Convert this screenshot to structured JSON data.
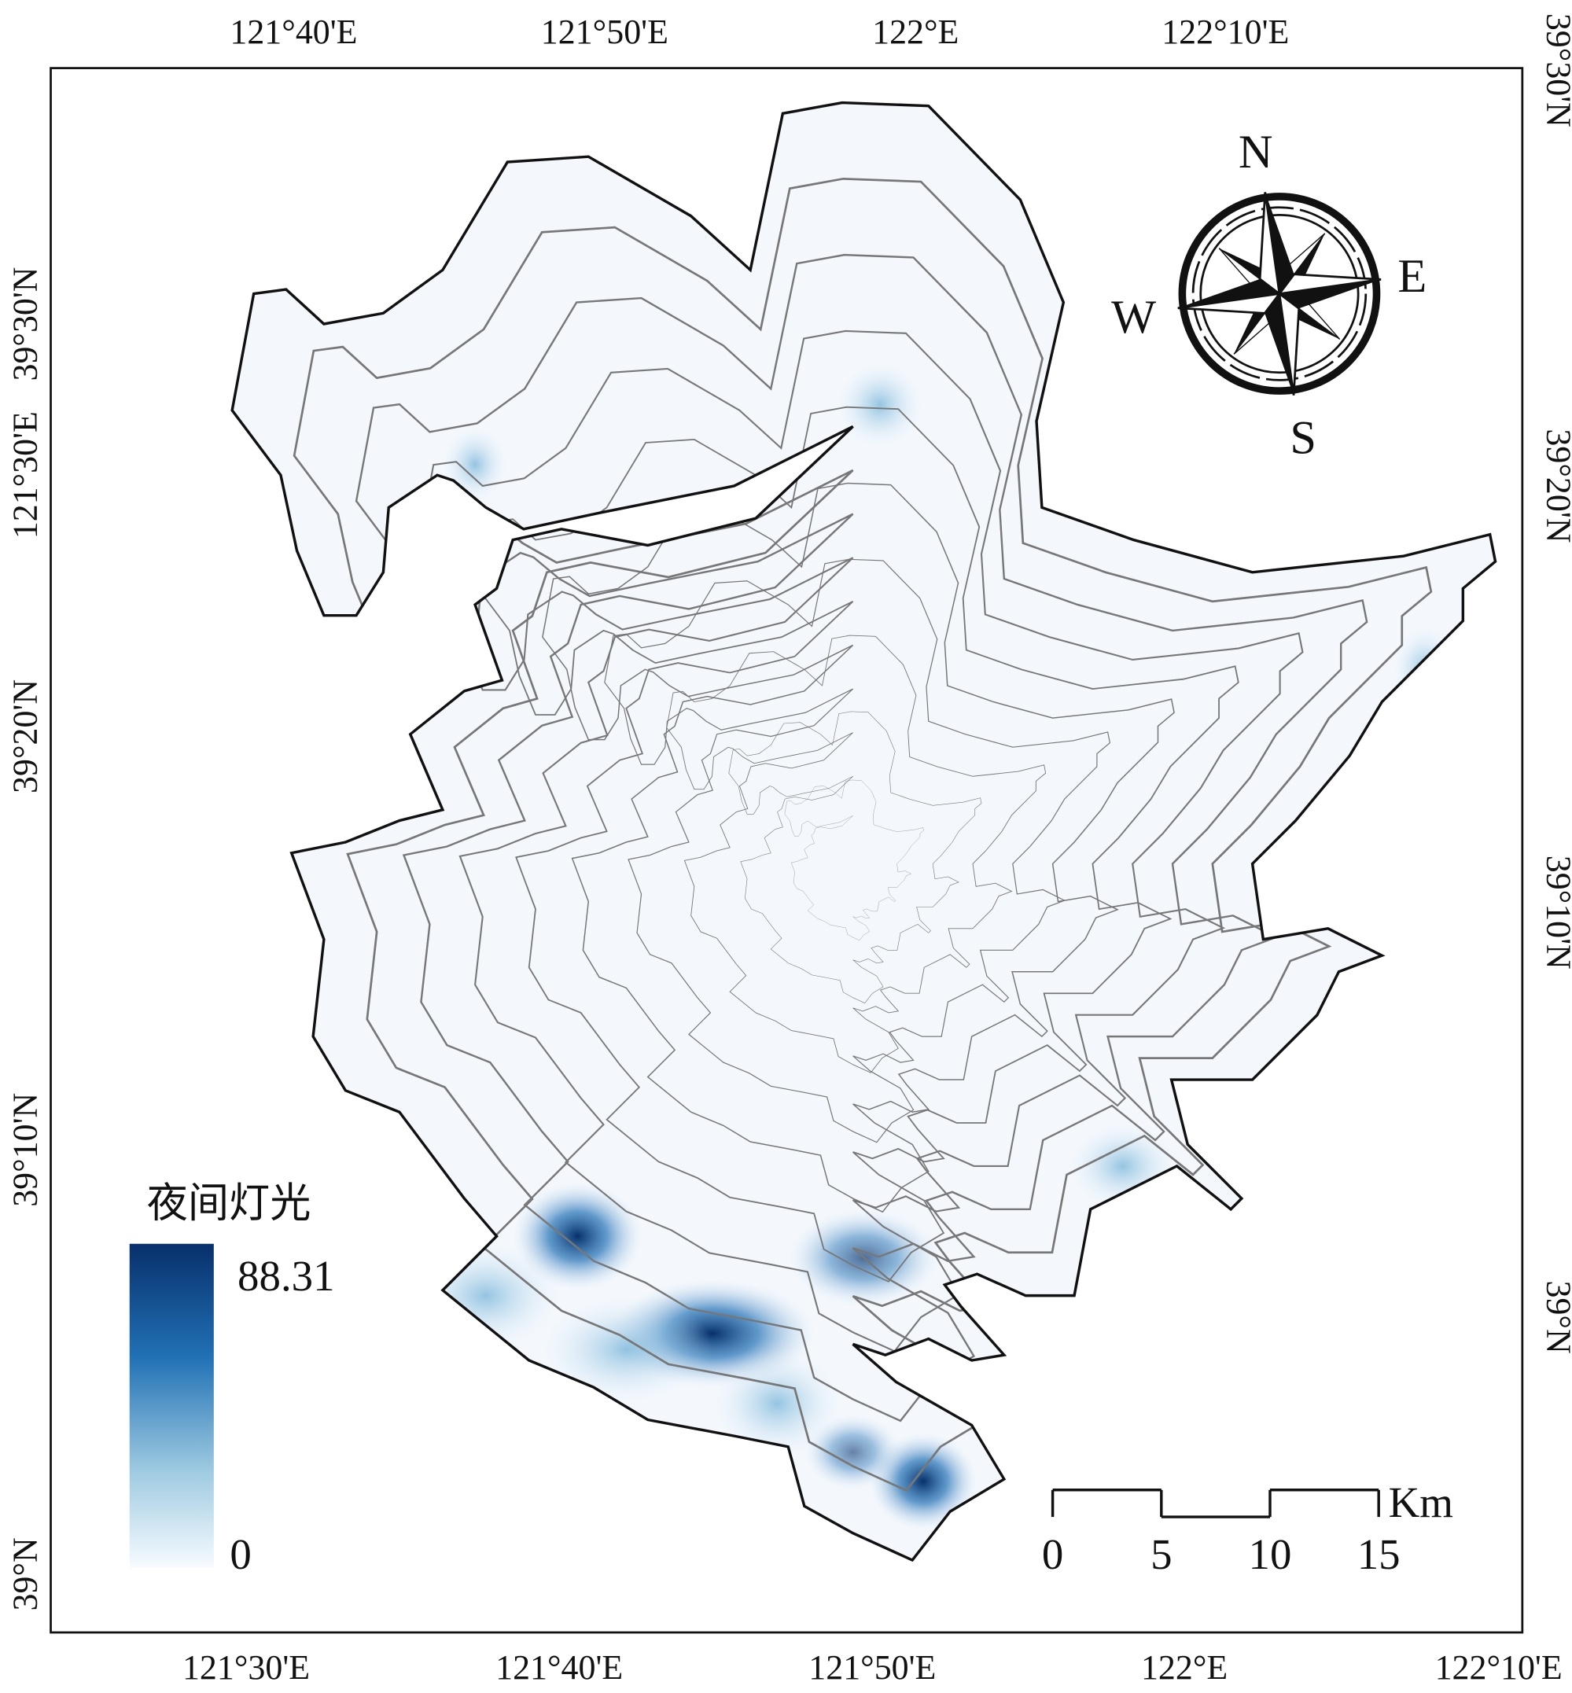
{
  "top_labels": [
    "121°40'E",
    "121°50'E",
    "122°E",
    "122°10'E",
    "39°30'N"
  ],
  "bottom_labels": [
    "121°30'E",
    "121°40'E",
    "121°50'E",
    "122°E",
    "122°10'E"
  ],
  "left_labels": [
    "39°30'N",
    "121°30'E",
    "39°20'N",
    "39°10'N",
    "39°N"
  ],
  "right_labels": [
    "39°20'N",
    "39°10'N",
    "39°N"
  ],
  "compass": {
    "north": "N",
    "east": "E",
    "south": "S",
    "west": "W"
  },
  "legend": {
    "title": "夜间灯光",
    "max": 88.31,
    "min": 0
  },
  "scale_bar": {
    "ticks": [
      0,
      5,
      10,
      15
    ],
    "unit": "Km"
  }
}
